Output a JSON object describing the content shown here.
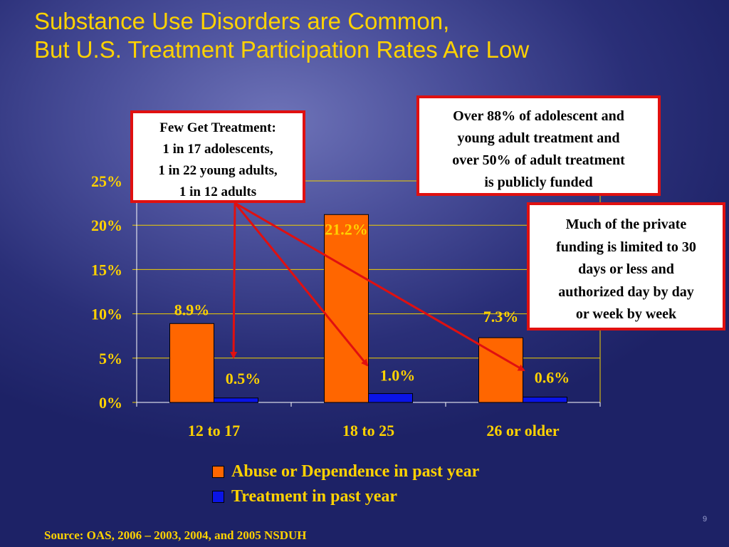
{
  "slide": {
    "title_line1": "Substance Use Disorders are Common,",
    "title_line2": "But U.S. Treatment Participation Rates Are Low",
    "source": "Source: OAS, 2006 – 2003, 2004, and 2005 NSDUH",
    "page_number": "9"
  },
  "callouts": {
    "few_treatment": [
      "Few Get Treatment:",
      "1 in 17 adolescents,",
      "1 in 22 young adults,",
      "1 in 12 adults"
    ],
    "public_funding": [
      "Over 88% of adolescent and",
      "young adult treatment and",
      "over 50% of adult treatment",
      "is publicly funded"
    ],
    "private_funding": [
      "Much of the private",
      "funding is limited to 30",
      "days or less and",
      "authorized day by day",
      "or week by week"
    ]
  },
  "colors": {
    "title": "#ffd200",
    "axis_text": "#ffd200",
    "series_abuse": "#ff6600",
    "series_treatment": "#0a14e6",
    "arrow": "#e01010",
    "callout_border": "#e01010",
    "grid": "#f2d000"
  },
  "chart_data": {
    "type": "bar",
    "categories": [
      "12 to 17",
      "18 to 25",
      "26 or older"
    ],
    "series": [
      {
        "name": "Abuse or Dependence in past year",
        "values": [
          8.9,
          21.2,
          7.3
        ],
        "labels": [
          "8.9%",
          "21.2%",
          "7.3%"
        ]
      },
      {
        "name": "Treatment in past year",
        "values": [
          0.5,
          1.0,
          0.6
        ],
        "labels": [
          "0.5%",
          "1.0%",
          "0.6%"
        ]
      }
    ],
    "ylim": [
      0,
      25
    ],
    "yticks": [
      0,
      5,
      10,
      15,
      20,
      25
    ],
    "ytick_labels": [
      "0%",
      "5%",
      "10%",
      "15%",
      "20%",
      "25%"
    ],
    "grid": true,
    "legend_position": "bottom"
  }
}
